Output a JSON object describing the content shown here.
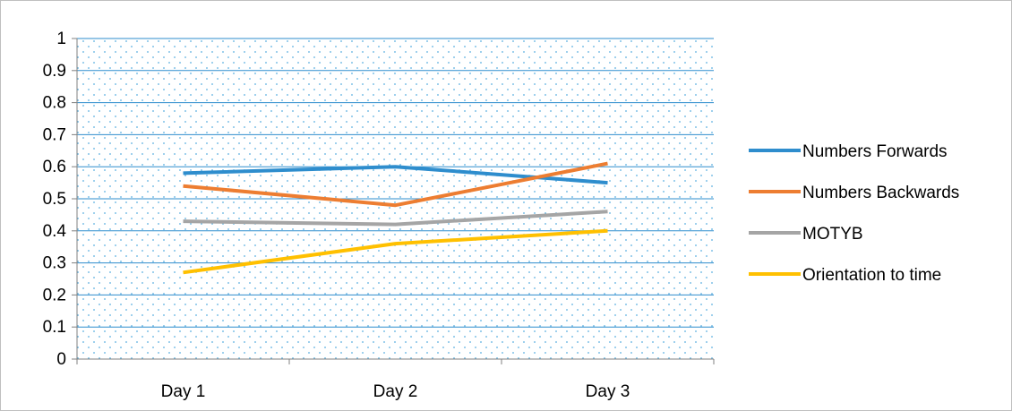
{
  "chart_data": {
    "type": "line",
    "categories": [
      "Day 1",
      "Day 2",
      "Day 3"
    ],
    "series": [
      {
        "name": "Numbers Forwards",
        "values": [
          0.58,
          0.6,
          0.55
        ],
        "color": "#2e8dcd"
      },
      {
        "name": "Numbers Backwards",
        "values": [
          0.54,
          0.48,
          0.61
        ],
        "color": "#ed7d31"
      },
      {
        "name": "MOTYB",
        "values": [
          0.43,
          0.42,
          0.46
        ],
        "color": "#a5a5a5"
      },
      {
        "name": "Orientation to time",
        "values": [
          0.27,
          0.36,
          0.4
        ],
        "color": "#ffc000"
      }
    ],
    "yticks": [
      "0",
      "0.1",
      "0.2",
      "0.3",
      "0.4",
      "0.5",
      "0.6",
      "0.7",
      "0.8",
      "0.9",
      "1"
    ],
    "ylim": [
      0,
      1
    ],
    "title": "",
    "xlabel": "",
    "ylabel": "",
    "grid": true,
    "legend_position": "right",
    "plot_background": "dotted light blue",
    "gridline_color": "#2e8dcd"
  }
}
